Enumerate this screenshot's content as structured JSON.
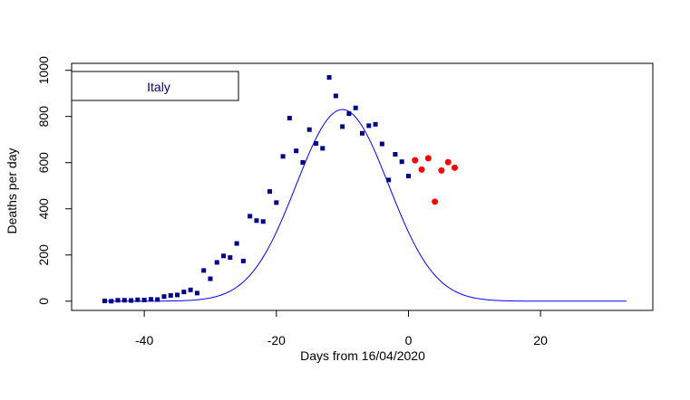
{
  "chart_data": {
    "type": "scatter",
    "title": "",
    "xlabel": "Days from 16/04/2020",
    "ylabel": "Deaths per day",
    "xlim": [
      -51,
      37
    ],
    "ylim": [
      -40,
      1030
    ],
    "xticks": [
      -40,
      -20,
      0,
      20
    ],
    "yticks": [
      0,
      200,
      400,
      600,
      800,
      1000
    ],
    "xtick_labels": [
      "-40",
      "-20",
      "0",
      "20"
    ],
    "ytick_labels": [
      "0",
      "200",
      "400",
      "600",
      "800",
      "1000"
    ],
    "legend_text": "Italy",
    "legend_placement": "top-left",
    "grid": false,
    "colors": {
      "observed": "#00008B",
      "recent": "#FF0000",
      "fit": "#0000FF",
      "legend_text": "#00008B"
    },
    "series": [
      {
        "kind": "points",
        "marker": "square",
        "x": [
          -46,
          -45,
          -44,
          -43,
          -42,
          -41,
          -40,
          -39,
          -38,
          -37,
          -36,
          -35,
          -34,
          -33,
          -32,
          -31,
          -30,
          -29,
          -28,
          -27,
          -26,
          -25,
          -24,
          -23,
          -22,
          -21,
          -20,
          -19,
          -18,
          -17,
          -16,
          -15,
          -14,
          -13,
          -12,
          -11,
          -10,
          -9,
          -8,
          -7,
          -6,
          -5,
          -4,
          -3,
          -2,
          -1,
          0
        ],
        "y": [
          1,
          0,
          4,
          4,
          3,
          6,
          5,
          8,
          7,
          20,
          25,
          27,
          40,
          49,
          35,
          133,
          97,
          168,
          196,
          189,
          250,
          174,
          368,
          349,
          345,
          475,
          427,
          627,
          793,
          651,
          601,
          743,
          683,
          662,
          969,
          889,
          756,
          812,
          837,
          727,
          760,
          766,
          681,
          525,
          636,
          604,
          542
        ]
      },
      {
        "kind": "points",
        "marker": "circle",
        "x": [
          1,
          2,
          3,
          4,
          5,
          6,
          7
        ],
        "y": [
          610,
          570,
          619,
          431,
          566,
          602,
          578
        ]
      },
      {
        "kind": "line",
        "peak_x": -10,
        "peak_y": 830,
        "spread": 7,
        "x_range": [
          -46,
          33
        ]
      }
    ]
  }
}
